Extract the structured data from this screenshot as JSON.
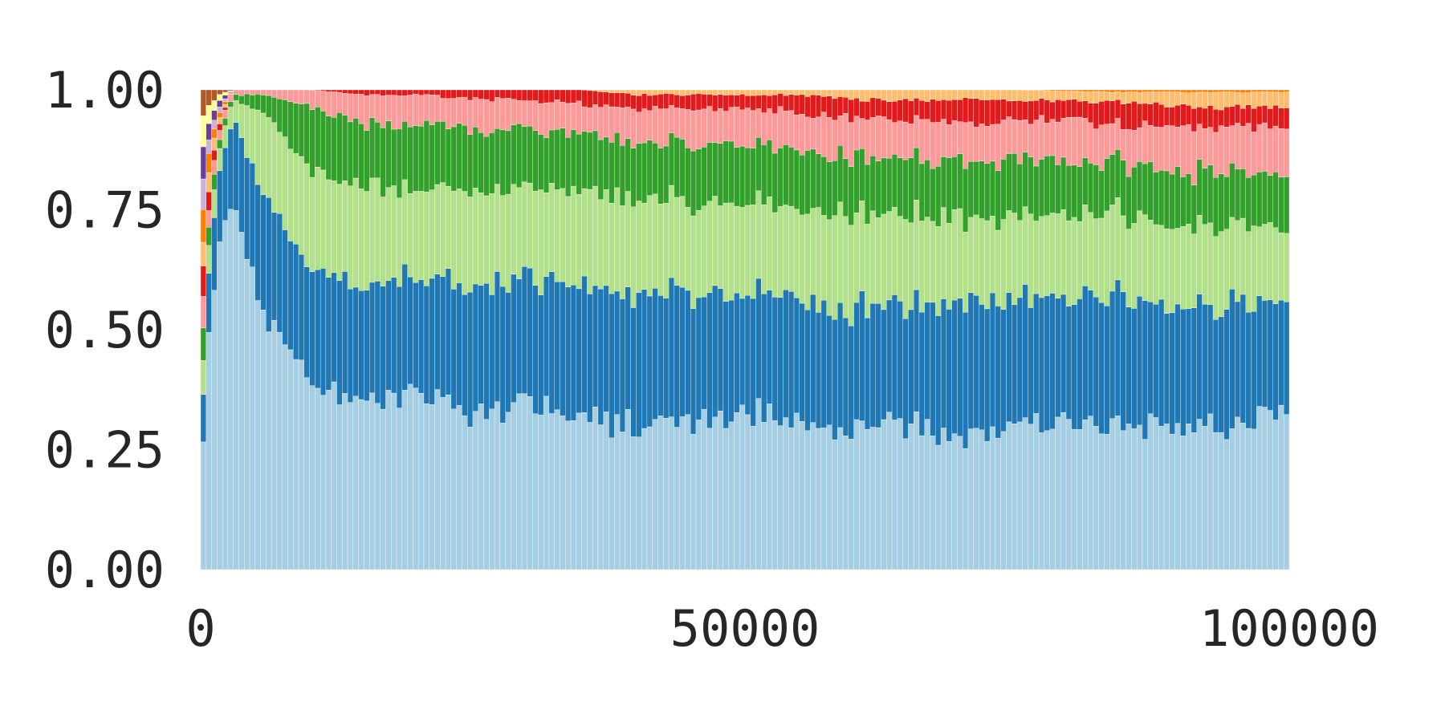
{
  "chart_data": {
    "type": "bar",
    "stacked": true,
    "normalized": true,
    "title": "",
    "xlabel": "",
    "ylabel": "",
    "xlim": [
      0,
      100000
    ],
    "ylim": [
      0,
      1
    ],
    "grid": false,
    "legend": "none",
    "x_ticks": [
      0,
      50000,
      100000
    ],
    "x_tick_labels": [
      "0",
      "50000",
      "100000"
    ],
    "y_ticks": [
      0,
      0.25,
      0.5,
      0.75,
      1
    ],
    "y_tick_labels": [
      "0.00",
      "0.25",
      "0.50",
      "0.75",
      "1.00"
    ],
    "bin_count": 200,
    "anchor_x": [
      0,
      3000,
      6000,
      10000,
      15000,
      20000,
      25000,
      30000,
      35000,
      40000,
      45000,
      50000,
      55000,
      60000,
      65000,
      70000,
      75000,
      80000,
      85000,
      90000,
      95000,
      100000
    ],
    "series": [
      {
        "color": "#a6cee3",
        "values": [
          0.02,
          0.75,
          0.52,
          0.38,
          0.35,
          0.37,
          0.33,
          0.34,
          0.32,
          0.3,
          0.31,
          0.33,
          0.3,
          0.29,
          0.3,
          0.28,
          0.31,
          0.3,
          0.29,
          0.31,
          0.3,
          0.33
        ]
      },
      {
        "color": "#1f78b4",
        "values": [
          0.02,
          0.17,
          0.24,
          0.23,
          0.23,
          0.24,
          0.26,
          0.26,
          0.27,
          0.28,
          0.27,
          0.25,
          0.26,
          0.25,
          0.24,
          0.27,
          0.26,
          0.26,
          0.27,
          0.25,
          0.26,
          0.24
        ]
      },
      {
        "color": "#b2df8a",
        "values": [
          0.02,
          0.04,
          0.17,
          0.2,
          0.2,
          0.18,
          0.19,
          0.19,
          0.19,
          0.19,
          0.19,
          0.19,
          0.19,
          0.2,
          0.19,
          0.18,
          0.17,
          0.17,
          0.17,
          0.16,
          0.16,
          0.15
        ]
      },
      {
        "color": "#33a02c",
        "values": [
          0.02,
          0.01,
          0.04,
          0.13,
          0.13,
          0.13,
          0.13,
          0.12,
          0.12,
          0.12,
          0.12,
          0.12,
          0.12,
          0.12,
          0.12,
          0.12,
          0.12,
          0.11,
          0.11,
          0.11,
          0.11,
          0.11
        ]
      },
      {
        "color": "#fb9a99",
        "values": [
          0.02,
          0.01,
          0.01,
          0.03,
          0.06,
          0.06,
          0.06,
          0.06,
          0.06,
          0.07,
          0.07,
          0.07,
          0.08,
          0.08,
          0.08,
          0.08,
          0.08,
          0.09,
          0.08,
          0.09,
          0.09,
          0.09
        ]
      },
      {
        "color": "#e31a1c",
        "values": [
          0.02,
          0.0,
          0.0,
          0.0,
          0.01,
          0.01,
          0.02,
          0.02,
          0.03,
          0.03,
          0.03,
          0.03,
          0.04,
          0.04,
          0.04,
          0.05,
          0.04,
          0.04,
          0.05,
          0.04,
          0.04,
          0.04
        ]
      },
      {
        "color": "#fdbf6f",
        "values": [
          0.02,
          0.0,
          0.0,
          0.0,
          0.0,
          0.0,
          0.0,
          0.0,
          0.0,
          0.01,
          0.01,
          0.01,
          0.01,
          0.02,
          0.02,
          0.02,
          0.02,
          0.02,
          0.02,
          0.03,
          0.03,
          0.03
        ]
      },
      {
        "color": "#ff7f00",
        "values": [
          0.02,
          0.0,
          0.0,
          0.0,
          0.0,
          0.0,
          0.0,
          0.0,
          0.0,
          0.0,
          0.0,
          0.0,
          0.0,
          0.0,
          0.0,
          0.0,
          0.0,
          0.003,
          0.005,
          0.005,
          0.005,
          0.005
        ]
      },
      {
        "color": "#cab2d6",
        "values": [
          0.02,
          0.0,
          0.0,
          0.0,
          0.0,
          0.0,
          0.0,
          0.0,
          0.0,
          0.0,
          0.0,
          0.0,
          0.0,
          0.0,
          0.0,
          0.0,
          0.0,
          0.0,
          0.0,
          0.0,
          0.0,
          0.0
        ]
      },
      {
        "color": "#6a3d9a",
        "values": [
          0.02,
          0.0,
          0.0,
          0.0,
          0.0,
          0.0,
          0.0,
          0.0,
          0.0,
          0.0,
          0.0,
          0.0,
          0.0,
          0.0,
          0.0,
          0.0,
          0.0,
          0.0,
          0.0,
          0.0,
          0.0,
          0.0
        ]
      },
      {
        "color": "#ffff99",
        "values": [
          0.02,
          0.0,
          0.0,
          0.0,
          0.0,
          0.0,
          0.0,
          0.0,
          0.0,
          0.0,
          0.0,
          0.0,
          0.0,
          0.0,
          0.0,
          0.0,
          0.0,
          0.0,
          0.0,
          0.0,
          0.0,
          0.0
        ]
      },
      {
        "color": "#b15928",
        "values": [
          0.02,
          0.0,
          0.0,
          0.0,
          0.0,
          0.0,
          0.0,
          0.0,
          0.0,
          0.0,
          0.0,
          0.0,
          0.0,
          0.0,
          0.0,
          0.0,
          0.0,
          0.0,
          0.0,
          0.0,
          0.0,
          0.0
        ]
      }
    ]
  }
}
